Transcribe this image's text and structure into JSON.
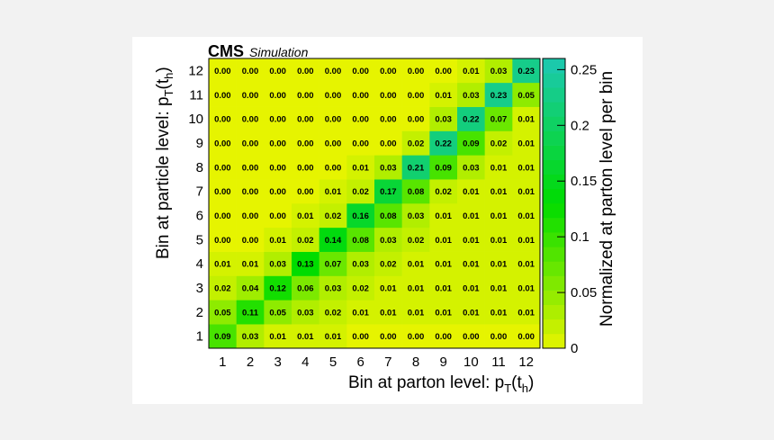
{
  "header": {
    "experiment": "CMS",
    "subtitle": "Simulation"
  },
  "chart_data": {
    "type": "heatmap",
    "title": "",
    "xlabel_main": "Bin at parton level: p",
    "xlabel_sub": "T",
    "xlabel_arg": "(t",
    "xlabel_argsub": "h",
    "xlabel_close": ")",
    "ylabel_main": "Bin at particle level: p",
    "ylabel_sub": "T",
    "ylabel_arg": "(t",
    "ylabel_argsub": "h",
    "ylabel_close": ")",
    "zlabel": "Normalized at parton level per bin",
    "x_categories": [
      "1",
      "2",
      "3",
      "4",
      "5",
      "6",
      "7",
      "8",
      "9",
      "10",
      "11",
      "12"
    ],
    "y_categories": [
      "1",
      "2",
      "3",
      "4",
      "5",
      "6",
      "7",
      "8",
      "9",
      "10",
      "11",
      "12"
    ],
    "zlim": [
      0,
      0.26
    ],
    "colorbar_ticks": [
      "0",
      "0.05",
      "0.1",
      "0.15",
      "0.2",
      "0.25"
    ],
    "colorbar_tick_values": [
      0,
      0.05,
      0.1,
      0.15,
      0.2,
      0.25
    ],
    "colors": {
      "low": "#e6f400",
      "mid": "#00dc00",
      "high": "#1cc8b4"
    },
    "values": [
      [
        "0.09",
        "0.03",
        "0.01",
        "0.01",
        "0.01",
        "0.00",
        "0.00",
        "0.00",
        "0.00",
        "0.00",
        "0.00",
        "0.00"
      ],
      [
        "0.05",
        "0.11",
        "0.05",
        "0.03",
        "0.02",
        "0.01",
        "0.01",
        "0.01",
        "0.01",
        "0.01",
        "0.01",
        "0.01"
      ],
      [
        "0.02",
        "0.04",
        "0.12",
        "0.06",
        "0.03",
        "0.02",
        "0.01",
        "0.01",
        "0.01",
        "0.01",
        "0.01",
        "0.01"
      ],
      [
        "0.01",
        "0.01",
        "0.03",
        "0.13",
        "0.07",
        "0.03",
        "0.02",
        "0.01",
        "0.01",
        "0.01",
        "0.01",
        "0.01"
      ],
      [
        "0.00",
        "0.00",
        "0.01",
        "0.02",
        "0.14",
        "0.08",
        "0.03",
        "0.02",
        "0.01",
        "0.01",
        "0.01",
        "0.01"
      ],
      [
        "0.00",
        "0.00",
        "0.00",
        "0.01",
        "0.02",
        "0.16",
        "0.08",
        "0.03",
        "0.01",
        "0.01",
        "0.01",
        "0.01"
      ],
      [
        "0.00",
        "0.00",
        "0.00",
        "0.00",
        "0.01",
        "0.02",
        "0.17",
        "0.08",
        "0.02",
        "0.01",
        "0.01",
        "0.01"
      ],
      [
        "0.00",
        "0.00",
        "0.00",
        "0.00",
        "0.00",
        "0.01",
        "0.03",
        "0.21",
        "0.09",
        "0.03",
        "0.01",
        "0.01"
      ],
      [
        "0.00",
        "0.00",
        "0.00",
        "0.00",
        "0.00",
        "0.00",
        "0.00",
        "0.02",
        "0.22",
        "0.09",
        "0.02",
        "0.01"
      ],
      [
        "0.00",
        "0.00",
        "0.00",
        "0.00",
        "0.00",
        "0.00",
        "0.00",
        "0.00",
        "0.03",
        "0.22",
        "0.07",
        "0.01"
      ],
      [
        "0.00",
        "0.00",
        "0.00",
        "0.00",
        "0.00",
        "0.00",
        "0.00",
        "0.00",
        "0.01",
        "0.03",
        "0.23",
        "0.05"
      ],
      [
        "0.00",
        "0.00",
        "0.00",
        "0.00",
        "0.00",
        "0.00",
        "0.00",
        "0.00",
        "0.00",
        "0.01",
        "0.03",
        "0.23"
      ]
    ]
  }
}
